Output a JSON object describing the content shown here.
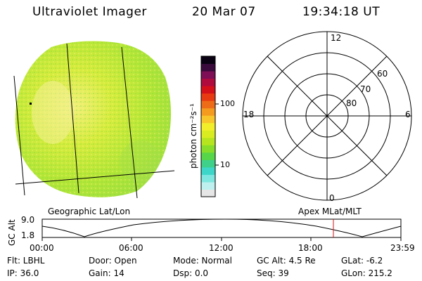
{
  "header": {
    "instrument": "Ultraviolet Imager",
    "date": "20 Mar 07",
    "time": "19:34:18 UT"
  },
  "colorbar": {
    "unit_label": "photon cm⁻²s⁻¹",
    "tick_100": "100",
    "tick_10": "10",
    "colors": [
      "#e6e6e6",
      "#bdf0ef",
      "#7fe6e0",
      "#3ed6c8",
      "#3fd08a",
      "#57d64a",
      "#88dd2a",
      "#b6e51f",
      "#d9ec22",
      "#f3ee2a",
      "#f8c52b",
      "#f39a1f",
      "#ee6b17",
      "#e83a12",
      "#d4101a",
      "#b00b3e",
      "#7e0e55",
      "#3a0a3c",
      "#0a0212"
    ]
  },
  "polar": {
    "label_12": "12",
    "label_0": "0",
    "label_18": "18",
    "label_6": "6",
    "label_60": "60",
    "label_70": "70",
    "label_80": "80"
  },
  "labels": {
    "geographic": "Geographic Lat/Lon",
    "apex": "Apex  MLat/MLT"
  },
  "altitude_plot": {
    "ylabel": "GC Alt",
    "y_top": "9.0",
    "y_bottom": "1.8",
    "x_ticks": [
      "00:00",
      "06:00",
      "12:00",
      "18:00",
      "23:59"
    ],
    "current_time_color": "#d01010"
  },
  "info": {
    "filter_label": "Flt: LBHL",
    "ip_label": "IP: 36.0",
    "door_label": "Door: Open",
    "gain_label": "Gain: 14",
    "mode_label": "Mode: Normal",
    "dsp_label": "Dsp:      0.0",
    "gcalt_label": "GC Alt: 4.5 Re",
    "seq_label": "Seq: 39",
    "glat_label": "GLat:   -6.2",
    "glon_label": "GLon: 215.2"
  }
}
